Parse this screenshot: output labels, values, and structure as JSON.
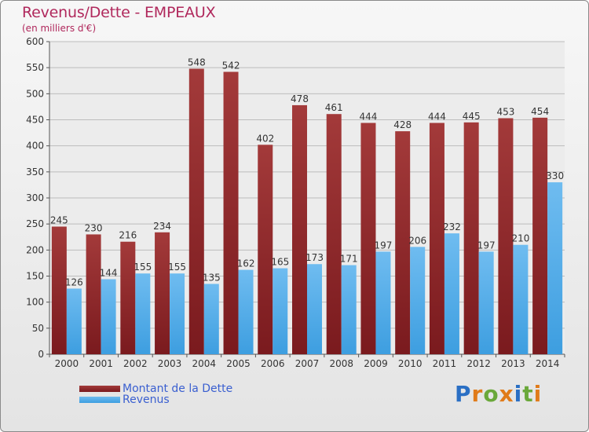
{
  "title": "Revenus/Dette - EMPEAUX",
  "subtitle": "(en milliers d'€)",
  "logo": {
    "text": "Proxiti",
    "letters": [
      "P",
      "r",
      "o",
      "x",
      "i",
      "t",
      "i"
    ],
    "colors": [
      "#2a6fc4",
      "#e07b1a",
      "#6aa83a",
      "#e07b1a",
      "#2a6fc4",
      "#6aa83a",
      "#e07b1a"
    ]
  },
  "colors": {
    "debt": "#7a1a1e",
    "debt_light": "#a33a3a",
    "revenue": "#3d9ee0",
    "revenue_light": "#6fbcf0",
    "grid": "#bdbdbd",
    "plot_bg": "#ececec"
  },
  "chart_data": {
    "type": "bar",
    "title": "Revenus/Dette - EMPEAUX",
    "subtitle": "(en milliers d'€)",
    "categories": [
      "2000",
      "2001",
      "2002",
      "2003",
      "2004",
      "2005",
      "2006",
      "2007",
      "2008",
      "2009",
      "2010",
      "2011",
      "2012",
      "2013",
      "2014"
    ],
    "series": [
      {
        "name": "Montant de la Dette",
        "values": [
          245,
          230,
          216,
          234,
          548,
          542,
          402,
          478,
          461,
          444,
          428,
          444,
          445,
          453,
          454
        ]
      },
      {
        "name": "Revenus",
        "values": [
          126,
          144,
          155,
          155,
          135,
          162,
          165,
          173,
          171,
          197,
          206,
          232,
          197,
          210,
          330
        ]
      }
    ],
    "yticks": [
      0,
      50,
      100,
      150,
      200,
      250,
      300,
      350,
      400,
      450,
      500,
      550,
      600
    ],
    "ylim": [
      0,
      600
    ],
    "grid": true,
    "legend": "bottom-left"
  }
}
